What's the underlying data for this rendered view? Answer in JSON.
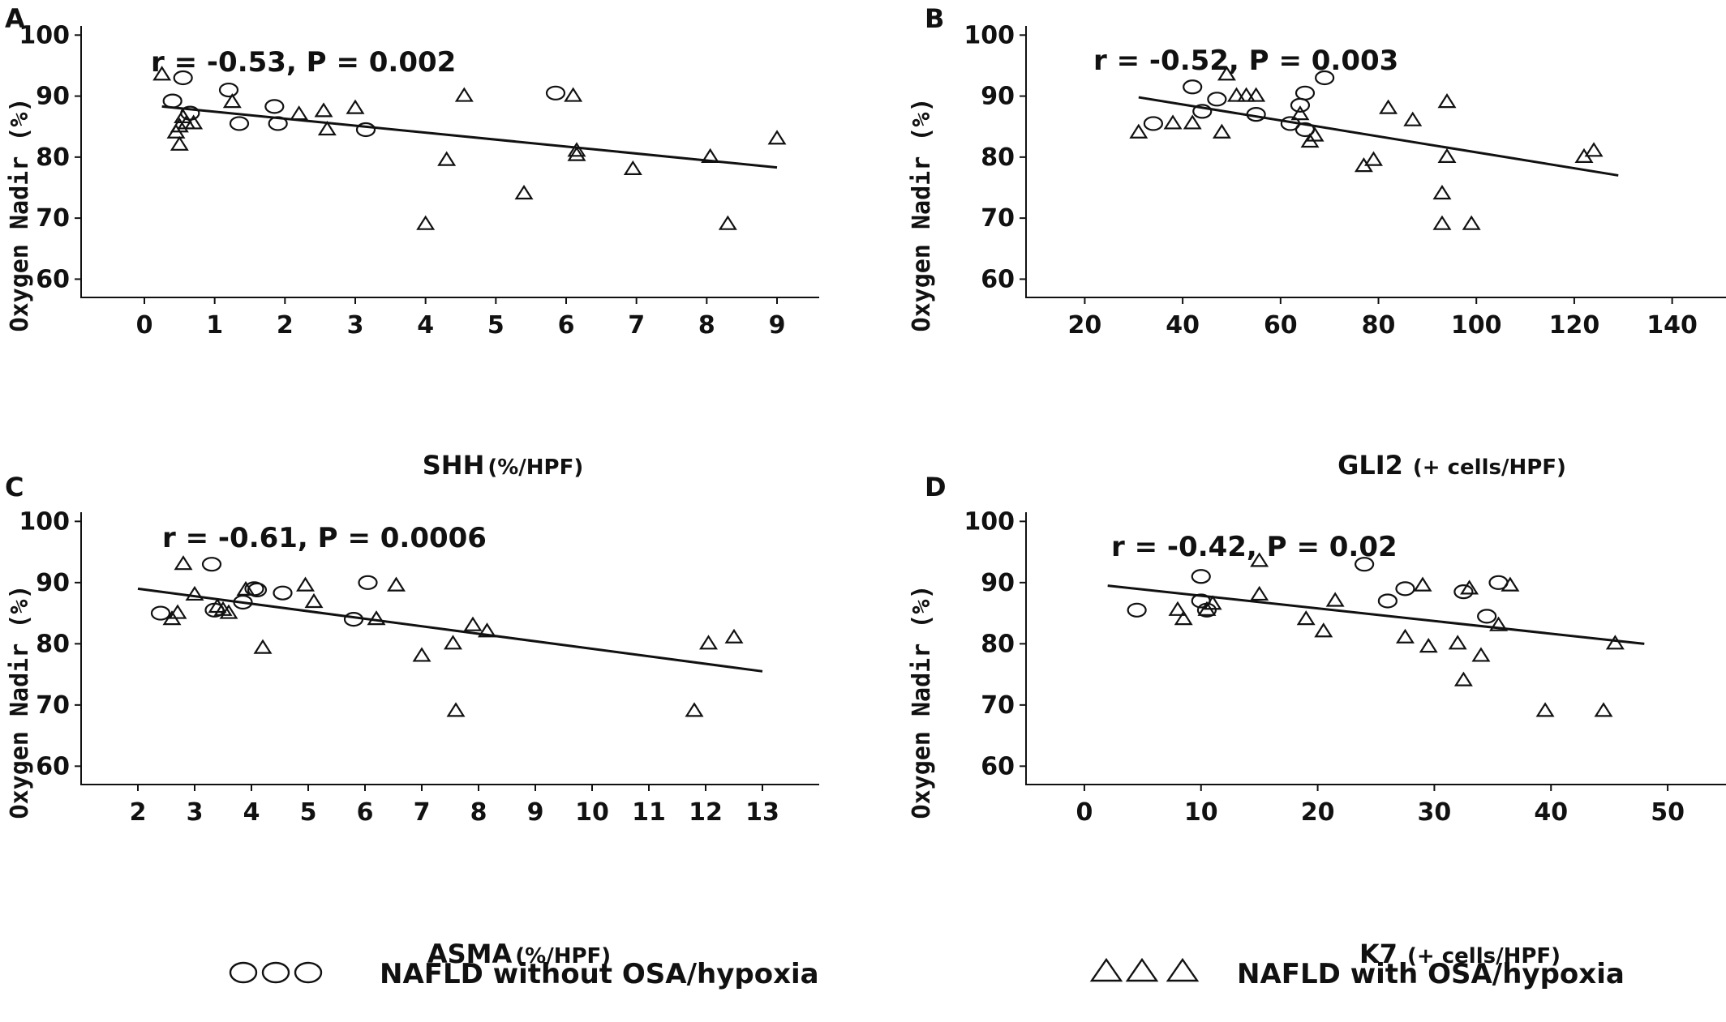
{
  "chart_data": [
    {
      "type": "scatter",
      "panel_label": "A",
      "annotation": "r = -0.53, P = 0.002",
      "xlabel": "SHH",
      "xlabel_unit": "(%/HPF)",
      "ylabel": "Oxygen Nadir  (%)",
      "xlim": [
        -0.9,
        9.6
      ],
      "ylim": [
        57,
        101.5
      ],
      "xticks": [
        "0",
        "1",
        "2",
        "3",
        "4",
        "5",
        "6",
        "7",
        "8",
        "9"
      ],
      "yticks": [
        "60",
        "70",
        "80",
        "90",
        "100"
      ],
      "grid": false,
      "trendline": [
        [
          0.25,
          88.3
        ],
        [
          9.0,
          78.3
        ]
      ],
      "series": [
        {
          "name": "NAFLD without OSA/hypoxia",
          "marker": "circle",
          "x": [
            0.4,
            0.55,
            0.65,
            1.2,
            1.35,
            1.85,
            1.9,
            3.15,
            5.85
          ],
          "y": [
            89.2,
            93.0,
            87.2,
            91.0,
            85.5,
            88.3,
            85.5,
            84.5,
            90.5
          ]
        },
        {
          "name": "NAFLD with OSA/hypoxia",
          "marker": "triangle",
          "x": [
            0.25,
            0.45,
            0.5,
            0.55,
            0.6,
            0.7,
            0.5,
            1.25,
            2.2,
            2.55,
            2.6,
            3.0,
            4.0,
            4.3,
            4.55,
            5.4,
            6.1,
            6.15,
            6.15,
            6.95,
            8.05,
            8.3,
            9.0
          ],
          "y": [
            93.5,
            84.0,
            82.0,
            86.5,
            85.5,
            85.5,
            85.0,
            89.0,
            87.0,
            87.5,
            84.5,
            88.0,
            69.0,
            79.5,
            90.0,
            74.0,
            90.0,
            81.0,
            80.3,
            78.0,
            80.0,
            69.0,
            83.0
          ]
        }
      ]
    },
    {
      "type": "scatter",
      "panel_label": "B",
      "annotation": "r = -0.52, P = 0.003",
      "xlabel": "GLI2",
      "xlabel_unit": "(+ cells/HPF)",
      "ylabel": "Oxygen Nadir  (%)",
      "xlim": [
        8,
        151
      ],
      "ylim": [
        57,
        101.5
      ],
      "xticks": [
        "20",
        "40",
        "60",
        "80",
        "100",
        "120",
        "140"
      ],
      "yticks": [
        "60",
        "70",
        "80",
        "90",
        "100"
      ],
      "grid": false,
      "trendline": [
        [
          31,
          89.8
        ],
        [
          129,
          77.0
        ]
      ],
      "series": [
        {
          "name": "NAFLD without OSA/hypoxia",
          "marker": "circle",
          "x": [
            34,
            42,
            44,
            47,
            55,
            62,
            64,
            65,
            65,
            69
          ],
          "y": [
            85.5,
            91.5,
            87.5,
            89.5,
            87.0,
            85.5,
            88.5,
            84.5,
            90.5,
            93.0
          ]
        },
        {
          "name": "NAFLD with OSA/hypoxia",
          "marker": "triangle",
          "x": [
            31,
            38,
            42,
            48,
            49,
            51,
            53,
            55,
            64,
            66,
            67,
            77,
            79,
            82,
            87,
            93,
            93,
            94,
            94,
            99,
            122,
            124
          ],
          "y": [
            84.0,
            85.5,
            85.5,
            84.0,
            93.5,
            90.0,
            90.0,
            90.0,
            87.0,
            82.5,
            83.5,
            78.5,
            79.5,
            88.0,
            86.0,
            74.0,
            69.0,
            89.0,
            80.0,
            69.0,
            80.0,
            81.0
          ]
        }
      ]
    },
    {
      "type": "scatter",
      "panel_label": "C",
      "annotation": "r = -0.61, P = 0.0006",
      "xlabel": "ASMA",
      "xlabel_unit": "(%/HPF)",
      "ylabel": "Oxygen Nadir  (%)",
      "xlim": [
        1.0,
        14.0
      ],
      "ylim": [
        57,
        101.5
      ],
      "xticks": [
        "2",
        "3",
        "4",
        "5",
        "6",
        "7",
        "8",
        "9",
        "10",
        "11",
        "12",
        "13"
      ],
      "yticks": [
        "60",
        "70",
        "80",
        "90",
        "100"
      ],
      "grid": false,
      "trendline": [
        [
          2.0,
          89.0
        ],
        [
          13.0,
          75.5
        ]
      ],
      "series": [
        {
          "name": "NAFLD without OSA/hypoxia",
          "marker": "circle",
          "x": [
            2.4,
            3.3,
            3.35,
            3.85,
            4.05,
            4.1,
            4.55,
            5.8,
            6.05
          ],
          "y": [
            85.0,
            93.0,
            85.5,
            86.8,
            89.0,
            88.8,
            88.3,
            84.0,
            90.0
          ]
        },
        {
          "name": "NAFLD with OSA/hypoxia",
          "marker": "triangle",
          "x": [
            2.6,
            2.7,
            2.8,
            3.0,
            3.4,
            3.5,
            3.6,
            3.9,
            4.2,
            4.95,
            5.1,
            6.2,
            6.55,
            7.0,
            7.55,
            7.6,
            7.9,
            8.15,
            11.8,
            12.05,
            12.5
          ],
          "y": [
            84.0,
            85.0,
            93.0,
            88.0,
            86.0,
            85.5,
            85.0,
            88.8,
            79.3,
            89.5,
            86.8,
            84.0,
            89.5,
            78.0,
            80.0,
            69.0,
            83.0,
            82.0,
            69.0,
            80.0,
            81.0
          ]
        }
      ]
    },
    {
      "type": "scatter",
      "panel_label": "D",
      "annotation": "r = -0.42, P = 0.02",
      "xlabel": "K7",
      "xlabel_unit": "(+ cells/HPF)",
      "ylabel": "Oxygen Nadir  (%)",
      "xlim": [
        -5,
        55
      ],
      "ylim": [
        57,
        101.5
      ],
      "xticks": [
        "0",
        "10",
        "20",
        "30",
        "40",
        "50"
      ],
      "yticks": [
        "60",
        "70",
        "80",
        "90",
        "100"
      ],
      "grid": false,
      "trendline": [
        [
          2,
          89.5
        ],
        [
          48,
          80.0
        ]
      ],
      "series": [
        {
          "name": "NAFLD without OSA/hypoxia",
          "marker": "circle",
          "x": [
            4.5,
            10.0,
            10.0,
            10.5,
            24.0,
            26.0,
            27.5,
            32.5,
            34.5,
            35.5
          ],
          "y": [
            85.5,
            91.0,
            87.0,
            85.5,
            93.0,
            87.0,
            89.0,
            88.5,
            84.5,
            90.0
          ]
        },
        {
          "name": "NAFLD with OSA/hypoxia",
          "marker": "triangle",
          "x": [
            8.0,
            8.5,
            10.5,
            11.0,
            15.0,
            15.0,
            19.0,
            20.5,
            21.5,
            27.5,
            29.0,
            29.5,
            32.0,
            32.5,
            33.0,
            34.0,
            35.5,
            36.5,
            39.5,
            44.5,
            45.5
          ],
          "y": [
            85.5,
            84.0,
            85.5,
            86.5,
            93.5,
            88.0,
            84.0,
            82.0,
            87.0,
            81.0,
            89.5,
            79.5,
            80.0,
            74.0,
            89.0,
            78.0,
            83.0,
            89.5,
            69.0,
            69.0,
            80.0
          ]
        }
      ]
    }
  ],
  "legend": {
    "placement": "bottom",
    "items": [
      {
        "label": "NAFLD without OSA/hypoxia",
        "marker": "circle"
      },
      {
        "label": "NAFLD with OSA/hypoxia",
        "marker": "triangle"
      }
    ]
  }
}
